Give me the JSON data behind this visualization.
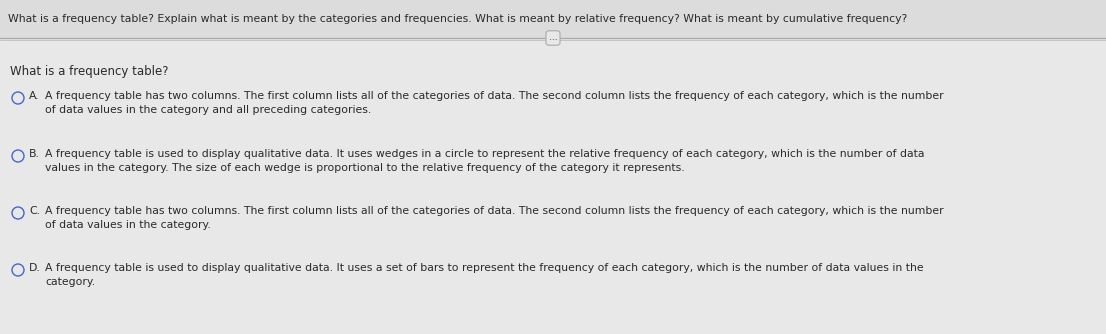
{
  "background_color": "#e8e8e8",
  "header_text": "What is a frequency table? Explain what is meant by the categories and frequencies. What is meant by relative frequency? What is meant by cumulative frequency?",
  "question": "What is a frequency table?",
  "options": [
    {
      "label": "A.",
      "text": "A frequency table has two columns. The first column lists all of the categories of data. The second column lists the frequency of each category, which is the number\nof data values in the category and all preceding categories."
    },
    {
      "label": "B.",
      "text": "A frequency table is used to display qualitative data. It uses wedges in a circle to represent the relative frequency of each category, which is the number of data\nvalues in the category. The size of each wedge is proportional to the relative frequency of the category it represents."
    },
    {
      "label": "C.",
      "text": "A frequency table has two columns. The first column lists all of the categories of data. The second column lists the frequency of each category, which is the number\nof data values in the category."
    },
    {
      "label": "D.",
      "text": "A frequency table is used to display qualitative data. It uses a set of bars to represent the frequency of each category, which is the number of data values in the\ncategory."
    }
  ],
  "header_fontsize": 7.8,
  "question_fontsize": 8.5,
  "option_fontsize": 7.8,
  "text_color": "#2a2a2a",
  "circle_color": "#4466cc",
  "header_bg": "#dcdcdc",
  "body_bg": "#e8e8e8",
  "separator_color": "#aaaaaa",
  "dots_text": "..."
}
